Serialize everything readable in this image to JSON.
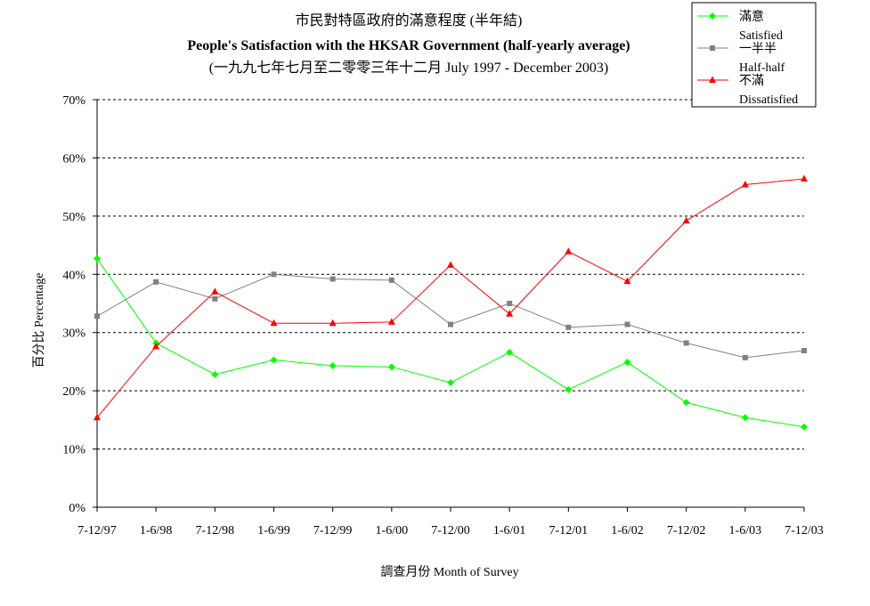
{
  "chart_data": {
    "type": "line",
    "title_zh": "市民對特區政府的滿意程度 (半年結)",
    "title_en": "People's Satisfaction with the HKSAR Government (half-yearly average)",
    "subtitle": "(一九九七年七月至二零零三年十二月 July 1997 - December 2003)",
    "xlabel": "調查月份 Month of Survey",
    "ylabel": "百分比 Percentage",
    "ylim": [
      0,
      70
    ],
    "yticks": [
      0,
      10,
      20,
      30,
      40,
      50,
      60,
      70
    ],
    "ytick_labels": [
      "0%",
      "10%",
      "20%",
      "30%",
      "40%",
      "50%",
      "60%",
      "70%"
    ],
    "categories": [
      "7-12/97",
      "1-6/98",
      "7-12/98",
      "1-6/99",
      "7-12/99",
      "1-6/00",
      "7-12/00",
      "1-6/01",
      "7-12/01",
      "1-6/02",
      "7-12/02",
      "1-6/03",
      "7-12/03"
    ],
    "grid": "horizontal dashed",
    "legend_position": "top-right",
    "series": [
      {
        "name": "滿意",
        "name_en": "Satisfied",
        "color": "#00ff00",
        "marker": "diamond",
        "values": [
          42.7,
          28.2,
          22.8,
          25.3,
          24.3,
          24.1,
          21.4,
          26.6,
          20.2,
          24.9,
          18.0,
          15.4,
          13.8
        ]
      },
      {
        "name": "一半半",
        "name_en": "Half-half",
        "color": "#808080",
        "marker": "square",
        "values": [
          32.8,
          38.7,
          35.8,
          40.0,
          39.2,
          39.0,
          31.4,
          35.0,
          30.9,
          31.4,
          28.2,
          25.7,
          26.9
        ]
      },
      {
        "name": "不滿",
        "name_en": "Dissatisfied",
        "color": "#ff0000",
        "marker": "triangle",
        "values": [
          15.4,
          27.6,
          37.0,
          31.6,
          31.6,
          31.8,
          41.6,
          33.2,
          43.9,
          38.8,
          49.2,
          55.4,
          56.4
        ]
      }
    ]
  }
}
